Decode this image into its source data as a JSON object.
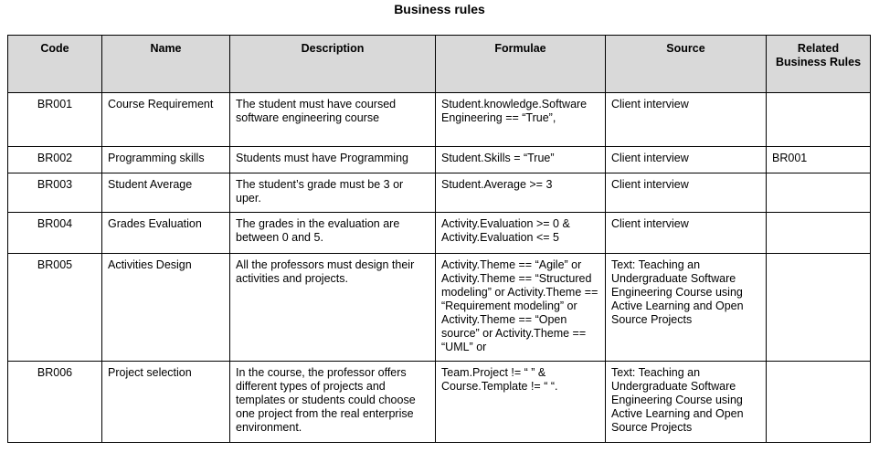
{
  "title": "Business rules",
  "columns": [
    "Code",
    "Name",
    "Description",
    "Formulae",
    "Source",
    "Related Business Rules"
  ],
  "rows": [
    {
      "code": "BR001",
      "name": "Course Requirement",
      "description": "The student must have coursed software engineering course",
      "formulae": "Student.knowledge.Software Engineering ==  “True”,",
      "source": "Client interview",
      "related": ""
    },
    {
      "code": "BR002",
      "name": "Programming skills",
      "description": "Students must have Programming",
      "formulae": "Student.Skills = “True”",
      "source": "Client interview",
      "related": "BR001"
    },
    {
      "code": "BR003",
      "name": "Student Average",
      "description": "The student’s grade must be 3 or uper.",
      "formulae": "Student.Average >= 3",
      "source": "Client interview",
      "related": ""
    },
    {
      "code": "BR004",
      "name": "Grades Evaluation",
      "description": "The grades in the evaluation are between 0 and 5.",
      "formulae": "Activity.Evaluation >= 0 & Activity.Evaluation <= 5",
      "source": "Client interview",
      "related": ""
    },
    {
      "code": "BR005",
      "name": "Activities Design",
      "description": "All the professors must design their activities and projects.",
      "formulae": "Activity.Theme == “Agile” or Activity.Theme == “Structured modeling” or Activity.Theme == “Requirement modeling” or Activity.Theme == “Open source” or Activity.Theme == “UML” or",
      "source": "Text: Teaching an Undergraduate Software Engineering Course using Active Learning and Open Source Projects",
      "related": ""
    },
    {
      "code": "BR006",
      "name": "Project selection",
      "description": "In the course,  the professor offers different types of projects and templates or students could choose one project from the real enterprise environment.",
      "formulae": "Team.Project != “ ” & Course.Template != “ “.",
      "source": "Text: Teaching an Undergraduate Software Engineering Course using Active Learning and Open Source Projects",
      "related": ""
    }
  ]
}
